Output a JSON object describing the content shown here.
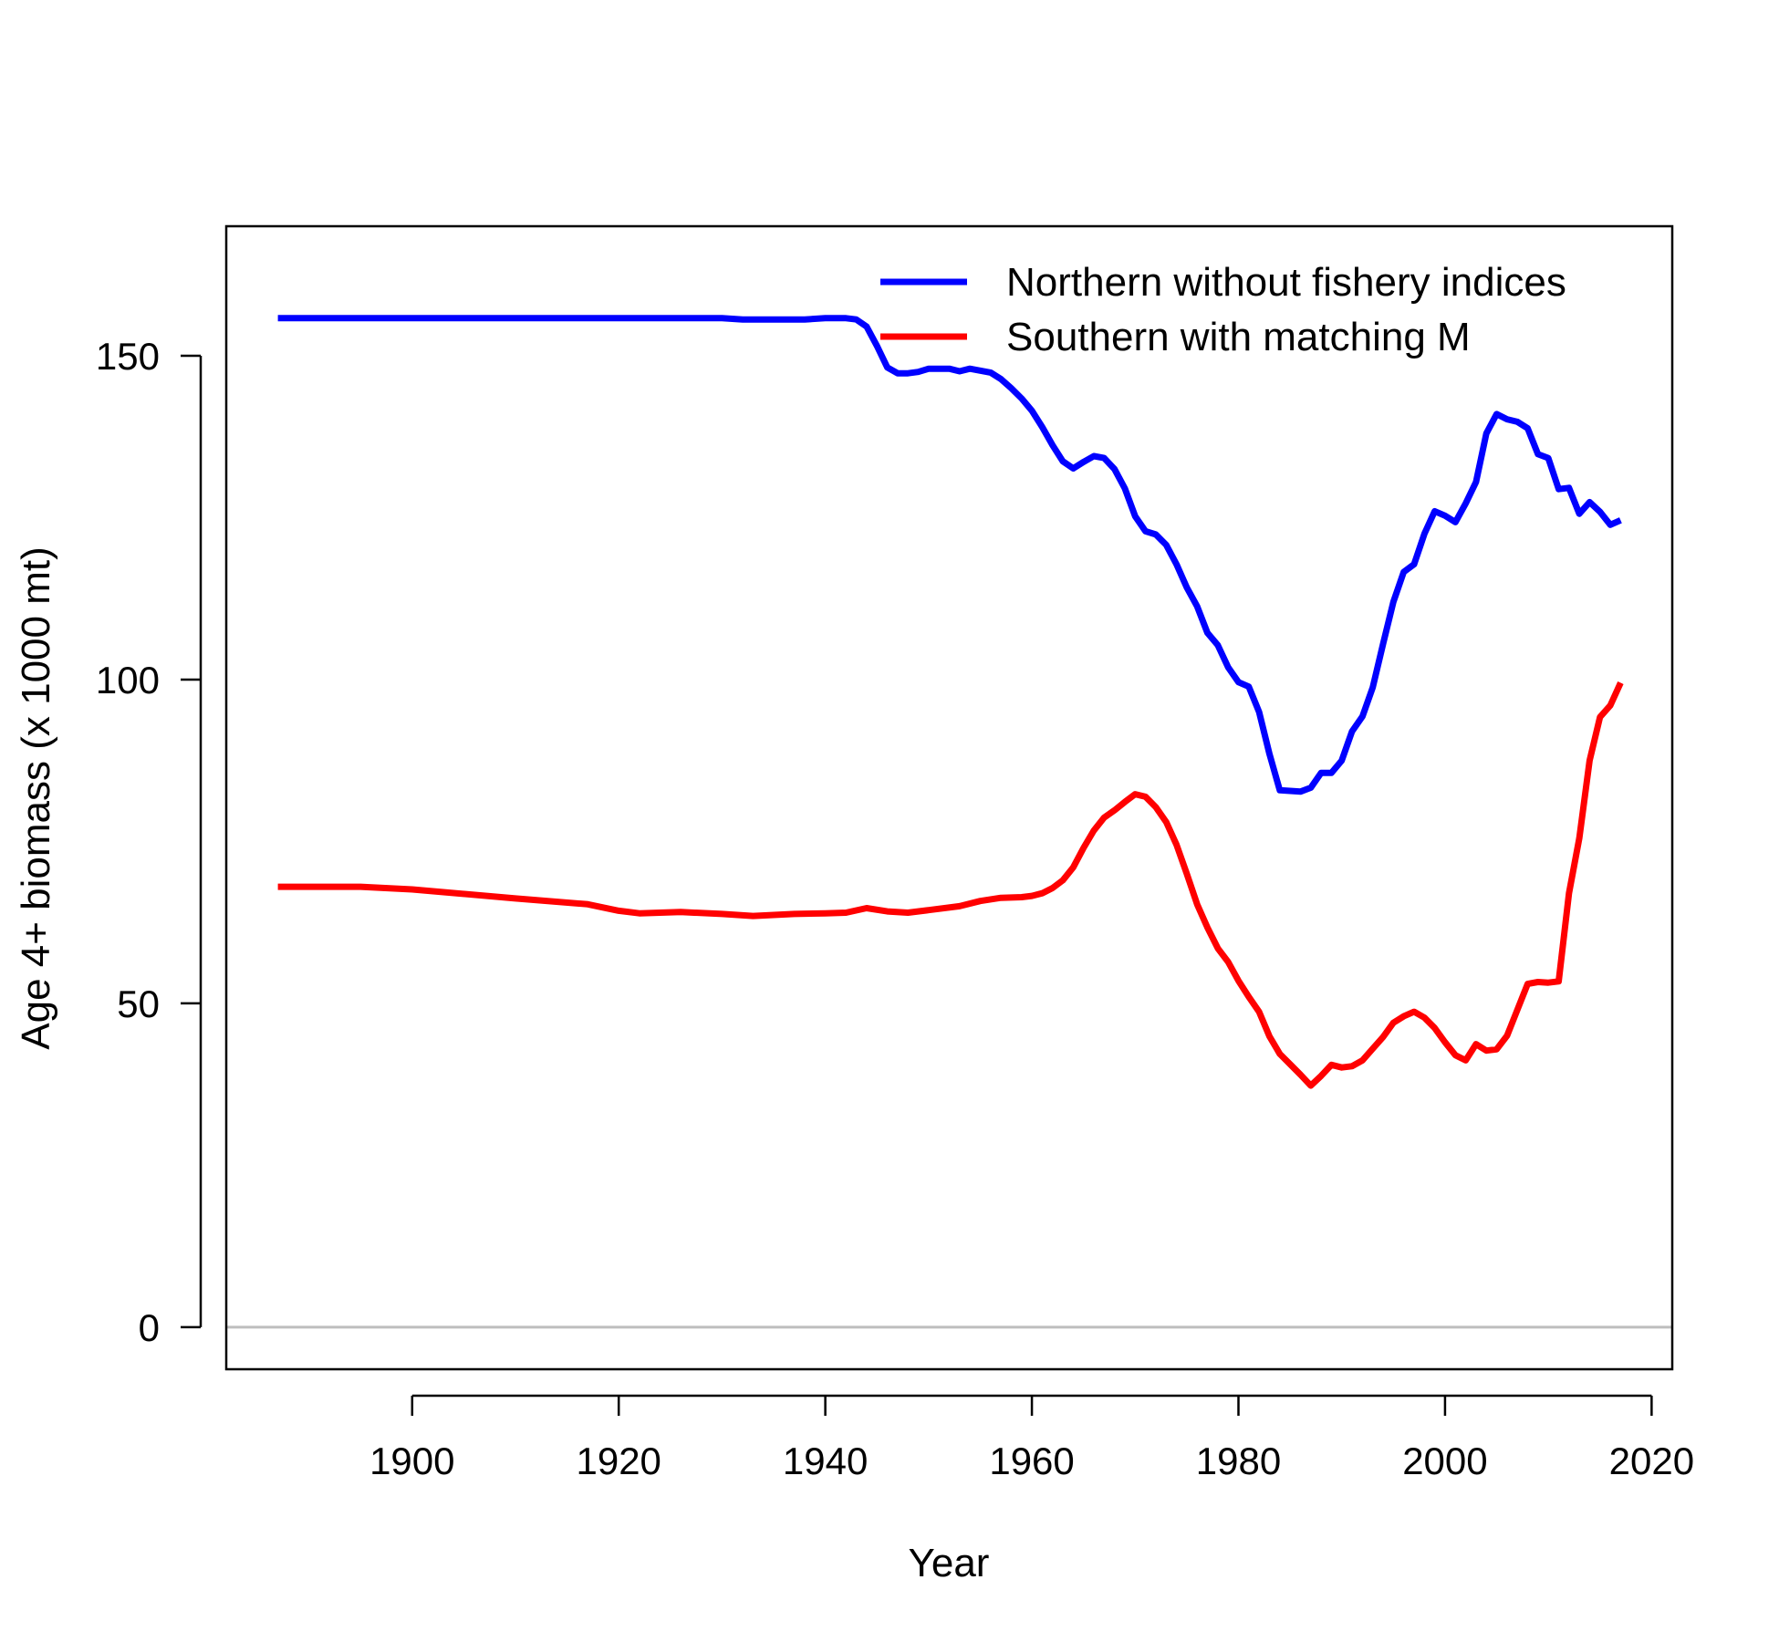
{
  "chart_data": {
    "type": "line",
    "title": "",
    "xlabel": "Year",
    "ylabel": "Age 4+ biomass (x 1000 mt)",
    "xlim": [
      1882,
      2022
    ],
    "ylim": [
      -6.5,
      170
    ],
    "xticks": [
      1900,
      1920,
      1940,
      1960,
      1980,
      2000,
      2020
    ],
    "yticks": [
      0,
      50,
      100,
      150
    ],
    "grid": false,
    "reference_line_y": 0,
    "legend_position": "top-right",
    "series": [
      {
        "name": "Northern without fishery indices",
        "color": "#0000ff",
        "x": [
          1887,
          1900,
          1920,
          1930,
          1932,
          1938,
          1940,
          1942,
          1943,
          1944,
          1945,
          1946,
          1947,
          1948,
          1949,
          1950,
          1952,
          1953,
          1954,
          1956,
          1957,
          1958,
          1959,
          1960,
          1961,
          1962,
          1963,
          1964,
          1965,
          1966,
          1967,
          1968,
          1969,
          1970,
          1971,
          1972,
          1973,
          1974,
          1975,
          1976,
          1977,
          1978,
          1979,
          1980,
          1981,
          1982,
          1983,
          1984,
          1985,
          1986,
          1987,
          1988,
          1989,
          1990,
          1991,
          1992,
          1993,
          1994,
          1995,
          1996,
          1997,
          1998,
          1999,
          2000,
          2001,
          2002,
          2003,
          2004,
          2005,
          2006,
          2007,
          2008,
          2009,
          2010,
          2011,
          2012,
          2013,
          2014,
          2015,
          2016,
          2017
        ],
        "y": [
          155.8,
          155.8,
          155.8,
          155.8,
          155.6,
          155.6,
          155.8,
          155.8,
          155.6,
          154.5,
          151.5,
          148.2,
          147.3,
          147.3,
          147.5,
          148.0,
          148.0,
          147.6,
          148.0,
          147.4,
          146.4,
          145.0,
          143.4,
          141.5,
          139.0,
          136.2,
          133.7,
          132.6,
          133.6,
          134.5,
          134.2,
          132.5,
          129.5,
          125.2,
          122.9,
          122.4,
          120.8,
          117.8,
          114.2,
          111.3,
          107.2,
          105.3,
          101.9,
          99.6,
          98.9,
          95.0,
          88.5,
          82.9,
          82.8,
          82.7,
          83.3,
          85.6,
          85.6,
          87.5,
          92.0,
          94.3,
          98.8,
          105.5,
          112.0,
          116.6,
          117.8,
          122.5,
          126.0,
          125.3,
          124.3,
          127.2,
          130.5,
          138.0,
          141.0,
          140.2,
          139.8,
          138.8,
          134.8,
          134.2,
          129.4,
          129.6,
          125.6,
          127.4,
          125.9,
          123.9,
          124.6
        ]
      },
      {
        "name": "Southern with matching M",
        "color": "#ff0000",
        "x": [
          1887,
          1895,
          1900,
          1910,
          1917,
          1920,
          1922,
          1924,
          1926,
          1930,
          1933,
          1937,
          1940,
          1942,
          1944,
          1946,
          1948,
          1950,
          1953,
          1955,
          1957,
          1959,
          1960,
          1961,
          1962,
          1963,
          1964,
          1965,
          1966,
          1967,
          1968,
          1969,
          1970,
          1971,
          1972,
          1973,
          1974,
          1975,
          1976,
          1977,
          1978,
          1979,
          1980,
          1981,
          1982,
          1983,
          1984,
          1985,
          1986,
          1987,
          1988,
          1989,
          1990,
          1991,
          1992,
          1993,
          1994,
          1995,
          1996,
          1997,
          1998,
          1999,
          2000,
          2001,
          2002,
          2003,
          2004,
          2005,
          2006,
          2007,
          2008,
          2009,
          2010,
          2011,
          2012,
          2013,
          2014,
          2015,
          2016,
          2017
        ],
        "y": [
          68.0,
          68.0,
          67.6,
          66.2,
          65.3,
          64.3,
          63.9,
          64.0,
          64.1,
          63.8,
          63.5,
          63.8,
          63.9,
          64.0,
          64.7,
          64.2,
          64.0,
          64.4,
          65.0,
          65.8,
          66.3,
          66.4,
          66.6,
          67.0,
          67.8,
          69.0,
          71.0,
          74.0,
          76.7,
          78.7,
          79.8,
          81.1,
          82.3,
          81.9,
          80.3,
          78.0,
          74.5,
          70.0,
          65.3,
          61.7,
          58.5,
          56.4,
          53.5,
          51.0,
          48.7,
          44.9,
          42.2,
          40.6,
          39.0,
          37.3,
          38.8,
          40.5,
          40.1,
          40.3,
          41.2,
          43.0,
          44.8,
          47.0,
          48.0,
          48.7,
          47.8,
          46.2,
          44.0,
          42.0,
          41.2,
          43.7,
          42.7,
          42.9,
          45.0,
          49.0,
          53.0,
          53.3,
          53.2,
          53.4,
          67.0,
          75.5,
          87.5,
          94.2,
          96.0,
          99.5
        ]
      }
    ]
  }
}
